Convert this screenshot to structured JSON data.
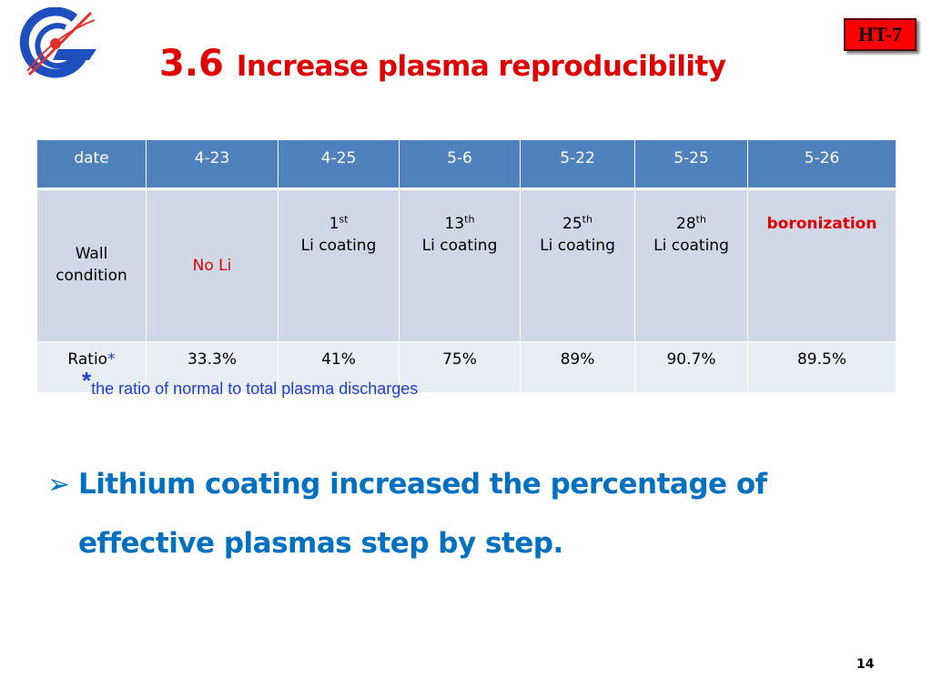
{
  "slide": {
    "title_number": "3.6",
    "title_text": "Increase plasma reproducibility",
    "badge": "HT-7",
    "page_number": "14"
  },
  "table": {
    "headers": [
      "date",
      "4-23",
      "4-25",
      "5-6",
      "5-22",
      "5-25",
      "5-26"
    ],
    "wall_label_line1": "Wall",
    "wall_label_line2": "condition",
    "wall": [
      {
        "text": "No Li"
      },
      {
        "num": "1",
        "sup": "st",
        "text": "Li coating"
      },
      {
        "num": "13",
        "sup": "th",
        "text": "Li coating"
      },
      {
        "num": "25",
        "sup": "th",
        "text": "Li coating"
      },
      {
        "num": "28",
        "sup": "th",
        "text": "Li coating"
      },
      {
        "text": "boronization"
      }
    ],
    "ratio_label": "Ratio",
    "ratio_mark": "*",
    "ratios": [
      "33.3%",
      "41%",
      "75%",
      "89%",
      "90.7%",
      "89.5%"
    ]
  },
  "footnote": {
    "mark": "*",
    "text": "the ratio of normal to total plasma discharges"
  },
  "bullet": {
    "line1": "Lithium coating increased the percentage of",
    "line2": "effective plasmas step by step."
  },
  "colors": {
    "title": "#e00000",
    "header_bg": "#4f81bd",
    "row_dark": "#d0d8e8",
    "row_light": "#e9edf4",
    "bullet_text": "#0070c0",
    "footnote_text": "#1f3fd0"
  }
}
